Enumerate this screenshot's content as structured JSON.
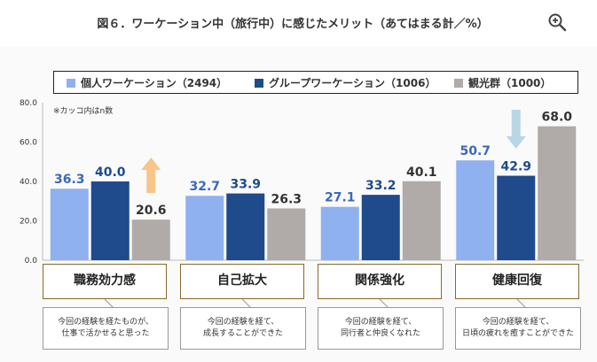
{
  "title": "図６．ワーケーション中（旅行中）に感じたメリット（あてはまる計／%）",
  "note": "※カッコ内はn数",
  "icons": {
    "zoom": "zoom-in-icon",
    "arrow_up": "arrow-up-icon",
    "arrow_down": "arrow-down-icon"
  },
  "colors": {
    "individual": "#8fb1f0",
    "group": "#1f4a8c",
    "tourism": "#b0aaa8",
    "arrow_up": "#f7c48a",
    "arrow_down": "#b9d6e6"
  },
  "chart_data": {
    "type": "bar",
    "categories": [
      "職務効力感",
      "自己拡大",
      "関係強化",
      "健康回復"
    ],
    "series": [
      {
        "name": "個人ワーケーション（2494）",
        "values": [
          36.3,
          32.7,
          27.1,
          50.7
        ]
      },
      {
        "name": "グループワーケーション（1006）",
        "values": [
          40.0,
          33.9,
          33.2,
          42.9
        ]
      },
      {
        "name": "観光群（1000）",
        "values": [
          20.6,
          26.3,
          40.1,
          68.0
        ]
      }
    ],
    "value_labels": [
      [
        "36.3",
        "32.7",
        "27.1",
        "50.7"
      ],
      [
        "40.0",
        "33.9",
        "33.2",
        "42.9"
      ],
      [
        "20.6",
        "26.3",
        "40.1",
        "68.0"
      ]
    ],
    "ylim": [
      0,
      80
    ],
    "yticks": [
      "0.0",
      "20.0",
      "40.0",
      "60.0",
      "80.0"
    ],
    "legend": "top",
    "grid": false
  },
  "callouts": [
    "今回の経験を経たものが、\n仕事で活かせると思った",
    "今回の経験を経て、\n成長することができた",
    "今回の経験を経て、\n同行者と仲良くなれた",
    "今回の経験を経て、\n日頃の疲れを癒すことができた"
  ]
}
